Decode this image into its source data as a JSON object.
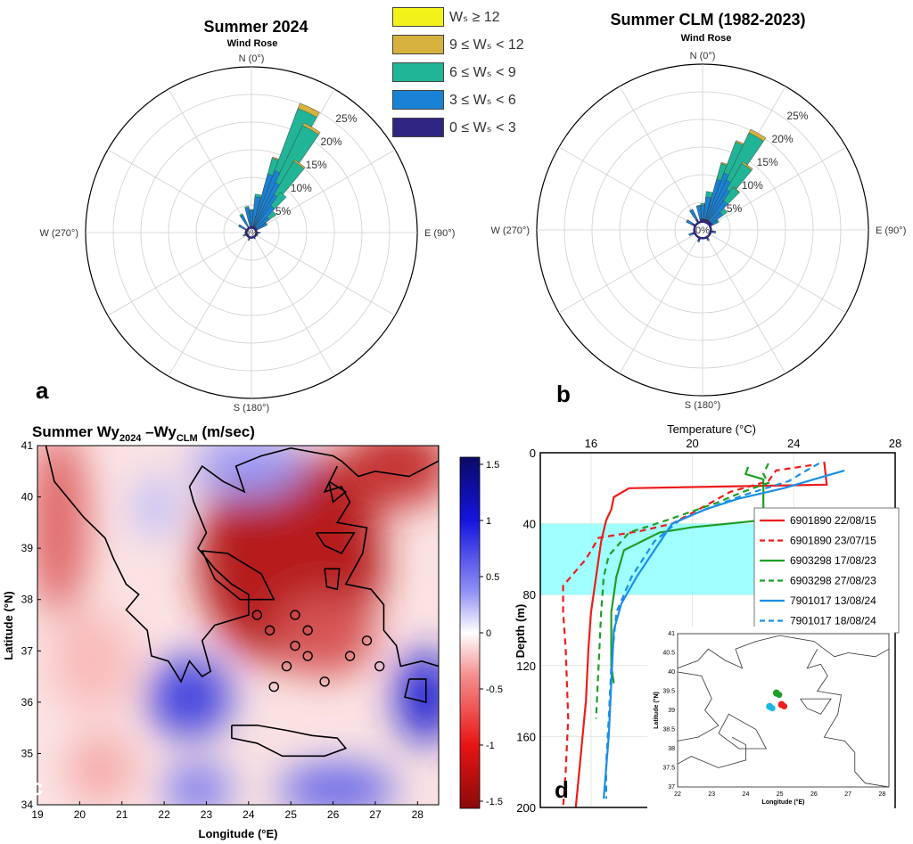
{
  "legend": {
    "title_prefix": "W",
    "entries": [
      {
        "label": "Wₛ ≥ 12",
        "color": "#f2f21a"
      },
      {
        "label": "9 ≤ Wₛ < 12",
        "color": "#d6b13d"
      },
      {
        "label": "6 ≤ Wₛ < 9",
        "color": "#20b596"
      },
      {
        "label": "3 ≤ Wₛ < 6",
        "color": "#1a82d6"
      },
      {
        "label": "0 ≤ Wₛ < 3",
        "color": "#2e2682"
      }
    ]
  },
  "panel_letters": {
    "a": "a",
    "b": "b",
    "c": "c",
    "d": "d"
  },
  "chart_data": [
    {
      "type": "wind_rose",
      "title": "Summer 2024",
      "subtitle": "Wind Rose",
      "direction_labels": [
        "N (0°)",
        "E (90°)",
        "S (180°)",
        "W (270°)"
      ],
      "radial_ticks": [
        "0%",
        "5%",
        "10%",
        "15%",
        "20%",
        "25%"
      ],
      "radial_max": 30,
      "bin_edges": [
        0,
        3,
        6,
        9,
        12
      ],
      "petals": [
        {
          "dir": 0,
          "cum": [
            1.2,
            4.0,
            4.2,
            4.2,
            4.2
          ]
        },
        {
          "dir": 10,
          "cum": [
            1.2,
            6.5,
            7.0,
            7.0,
            7.0
          ]
        },
        {
          "dir": 20,
          "cum": [
            1.2,
            11.0,
            14.0,
            14.2,
            14.2
          ]
        },
        {
          "dir": 25,
          "cum": [
            1.2,
            12.0,
            24.0,
            25.0,
            25.0
          ]
        },
        {
          "dir": 30,
          "cum": [
            1.2,
            10.0,
            21.5,
            22.0,
            22.0
          ]
        },
        {
          "dir": 35,
          "cum": [
            1.2,
            8.0,
            15.0,
            15.3,
            15.3
          ]
        },
        {
          "dir": 40,
          "cum": [
            1.2,
            6.0,
            9.0,
            9.0,
            9.0
          ]
        },
        {
          "dir": 50,
          "cum": [
            1.2,
            4.0,
            5.5,
            5.5,
            5.5
          ]
        },
        {
          "dir": 60,
          "cum": [
            1.2,
            3.0,
            3.2,
            3.2,
            3.2
          ]
        },
        {
          "dir": 90,
          "cum": [
            1.2,
            1.6,
            1.6,
            1.6,
            1.6
          ]
        },
        {
          "dir": 150,
          "cum": [
            1.1,
            1.3,
            1.3,
            1.3,
            1.3
          ]
        },
        {
          "dir": 200,
          "cum": [
            1.3,
            1.5,
            1.5,
            1.5,
            1.5
          ]
        },
        {
          "dir": 250,
          "cum": [
            1.2,
            1.6,
            1.6,
            1.6,
            1.6
          ]
        },
        {
          "dir": 300,
          "cum": [
            1.3,
            2.5,
            2.6,
            2.6,
            2.6
          ]
        },
        {
          "dir": 330,
          "cum": [
            1.3,
            3.5,
            3.8,
            3.8,
            3.8
          ]
        },
        {
          "dir": 350,
          "cum": [
            1.2,
            4.5,
            4.8,
            4.8,
            4.8
          ]
        }
      ]
    },
    {
      "type": "wind_rose",
      "title": "Summer CLM (1982-2023)",
      "subtitle": "Wind Rose",
      "direction_labels": [
        "N (0°)",
        "E (90°)",
        "S (180°)",
        "W (270°)"
      ],
      "radial_ticks": [
        "0%",
        "5%",
        "10%",
        "15%",
        "20%",
        "25%"
      ],
      "radial_max": 30,
      "bin_edges": [
        0,
        3,
        6,
        9,
        12
      ],
      "petals": [
        {
          "dir": 0,
          "cum": [
            2.0,
            4.5,
            4.8,
            4.8,
            4.8
          ]
        },
        {
          "dir": 10,
          "cum": [
            2.0,
            6.0,
            7.0,
            7.0,
            7.0
          ]
        },
        {
          "dir": 20,
          "cum": [
            2.0,
            9.5,
            12.5,
            12.7,
            12.7
          ]
        },
        {
          "dir": 25,
          "cum": [
            2.0,
            11.0,
            17.0,
            17.3,
            17.3
          ]
        },
        {
          "dir": 30,
          "cum": [
            2.0,
            10.0,
            19.5,
            20.2,
            20.2
          ]
        },
        {
          "dir": 35,
          "cum": [
            2.0,
            8.5,
            14.0,
            14.3,
            14.3
          ]
        },
        {
          "dir": 40,
          "cum": [
            2.0,
            6.5,
            9.5,
            9.6,
            9.6
          ]
        },
        {
          "dir": 50,
          "cum": [
            2.0,
            4.5,
            5.5,
            5.5,
            5.5
          ]
        },
        {
          "dir": 60,
          "cum": [
            2.0,
            3.0,
            3.3,
            3.3,
            3.3
          ]
        },
        {
          "dir": 100,
          "cum": [
            2.0,
            2.4,
            2.4,
            2.4,
            2.4
          ]
        },
        {
          "dir": 150,
          "cum": [
            1.9,
            2.2,
            2.2,
            2.2,
            2.2
          ]
        },
        {
          "dir": 200,
          "cum": [
            2.0,
            2.3,
            2.3,
            2.3,
            2.3
          ]
        },
        {
          "dir": 250,
          "cum": [
            2.0,
            2.6,
            2.6,
            2.6,
            2.6
          ]
        },
        {
          "dir": 300,
          "cum": [
            2.1,
            3.2,
            3.3,
            3.3,
            3.3
          ]
        },
        {
          "dir": 330,
          "cum": [
            2.1,
            4.0,
            4.2,
            4.2,
            4.2
          ]
        },
        {
          "dir": 350,
          "cum": [
            2.0,
            4.3,
            4.5,
            4.5,
            4.5
          ]
        }
      ]
    },
    {
      "type": "heatmap",
      "title_parts": [
        "Summer Wy",
        "2024",
        " –Wy",
        "CLM",
        " (m/sec)"
      ],
      "xlabel": "Longitude (°E)",
      "ylabel": "Latitude (°N)",
      "xticks": [
        19,
        20,
        21,
        22,
        23,
        24,
        25,
        26,
        27,
        28
      ],
      "yticks": [
        34,
        35,
        36,
        37,
        38,
        39,
        40,
        41
      ],
      "xlim": [
        19,
        28.5
      ],
      "ylim": [
        34,
        41
      ],
      "colorbar_ticks": [
        "1.5",
        "1",
        "0.5",
        "0",
        "-0.5",
        "-1",
        "-1.5"
      ],
      "colorbar_range": [
        -1.5,
        1.5
      ],
      "field_blobs": [
        {
          "lon": 25.0,
          "lat": 38.8,
          "rx": 2.2,
          "ry": 2.1,
          "value": -1.35
        },
        {
          "lon": 25.8,
          "lat": 37.3,
          "rx": 1.2,
          "ry": 0.8,
          "value": -1.0
        },
        {
          "lon": 27.5,
          "lat": 40.6,
          "rx": 1.3,
          "ry": 0.8,
          "value": -1.2
        },
        {
          "lon": 19.5,
          "lat": 39.5,
          "rx": 0.7,
          "ry": 1.8,
          "value": -0.9
        },
        {
          "lon": 22.6,
          "lat": 36.1,
          "rx": 1.0,
          "ry": 0.8,
          "value": 1.1
        },
        {
          "lon": 28.2,
          "lat": 36.1,
          "rx": 0.7,
          "ry": 0.9,
          "value": 1.3
        },
        {
          "lon": 26.1,
          "lat": 34.3,
          "rx": 1.4,
          "ry": 0.5,
          "value": 0.9
        },
        {
          "lon": 22.8,
          "lat": 34.3,
          "rx": 0.8,
          "ry": 0.5,
          "value": 0.8
        },
        {
          "lon": 24.0,
          "lat": 40.6,
          "rx": 1.3,
          "ry": 0.6,
          "value": 0.6
        },
        {
          "lon": 21.8,
          "lat": 39.8,
          "rx": 0.5,
          "ry": 0.6,
          "value": 0.4
        },
        {
          "lon": 20.5,
          "lat": 34.7,
          "rx": 0.8,
          "ry": 0.7,
          "value": -0.5
        },
        {
          "lon": 20.3,
          "lat": 36.8,
          "rx": 1.0,
          "ry": 1.0,
          "value": -0.4
        }
      ]
    },
    {
      "type": "line",
      "xlabel": "Temperature (°C)",
      "ylabel": "Depth (m)",
      "xlim": [
        14,
        28
      ],
      "ylim": [
        200,
        0
      ],
      "xticks": [
        16,
        20,
        24,
        28
      ],
      "xticks_top": [
        16,
        20,
        24,
        28
      ],
      "yticks": [
        0,
        40,
        80,
        120,
        160,
        200
      ],
      "shaded_band": {
        "from": 40,
        "to": 80,
        "color": "#80ffff"
      },
      "series": [
        {
          "name": "6901890 22/08/15",
          "color": "#ee1c1c",
          "dash": false,
          "points": [
            [
              25.2,
              5
            ],
            [
              25.3,
              18
            ],
            [
              17.5,
              20
            ],
            [
              16.9,
              25
            ],
            [
              16.8,
              32
            ],
            [
              16.6,
              38
            ],
            [
              16.4,
              50
            ],
            [
              16.2,
              70
            ],
            [
              16.0,
              90
            ],
            [
              15.9,
              110
            ],
            [
              15.8,
              140
            ],
            [
              15.6,
              170
            ],
            [
              15.4,
              200
            ]
          ]
        },
        {
          "name": "6901890 23/07/15",
          "color": "#ee1c1c",
          "dash": true,
          "points": [
            [
              24.7,
              7
            ],
            [
              23.3,
              10
            ],
            [
              23.0,
              16
            ],
            [
              21.5,
              22
            ],
            [
              20.5,
              30
            ],
            [
              19.2,
              40
            ],
            [
              18.0,
              44
            ],
            [
              16.3,
              48
            ],
            [
              15.8,
              60
            ],
            [
              14.9,
              75
            ],
            [
              14.9,
              90
            ],
            [
              15.0,
              110
            ],
            [
              15.1,
              150
            ],
            [
              15.0,
              180
            ],
            [
              14.9,
              200
            ]
          ]
        },
        {
          "name": "6903298 17/08/23",
          "color": "#1e9e28",
          "dash": false,
          "points": [
            [
              22.2,
              8
            ],
            [
              22.1,
              12
            ],
            [
              22.8,
              15
            ],
            [
              22.8,
              32
            ],
            [
              22.8,
              38
            ],
            [
              20.0,
              42
            ],
            [
              18.7,
              45
            ],
            [
              17.3,
              55
            ],
            [
              17.0,
              70
            ],
            [
              16.8,
              90
            ],
            [
              16.8,
              120
            ],
            [
              16.9,
              130
            ]
          ]
        },
        {
          "name": "6903298 27/08/23",
          "color": "#1e9e28",
          "dash": true,
          "points": [
            [
              23.0,
              6
            ],
            [
              22.8,
              12
            ],
            [
              23.0,
              17
            ],
            [
              22.0,
              22
            ],
            [
              21.0,
              28
            ],
            [
              19.0,
              38
            ],
            [
              17.5,
              45
            ],
            [
              16.7,
              58
            ],
            [
              16.5,
              70
            ],
            [
              16.4,
              90
            ],
            [
              16.3,
              120
            ],
            [
              16.2,
              150
            ]
          ]
        },
        {
          "name": "7901017 13/08/24",
          "color": "#1a8fe6",
          "dash": false,
          "points": [
            [
              26.0,
              10
            ],
            [
              24.8,
              15
            ],
            [
              23.6,
              20
            ],
            [
              21.8,
              26
            ],
            [
              20.5,
              32
            ],
            [
              19.2,
              40
            ],
            [
              18.5,
              55
            ],
            [
              17.8,
              70
            ],
            [
              17.2,
              85
            ],
            [
              16.9,
              100
            ],
            [
              16.8,
              130
            ],
            [
              16.7,
              160
            ],
            [
              16.5,
              195
            ]
          ]
        },
        {
          "name": "7901017 18/08/24",
          "color": "#1a8fe6",
          "dash": true,
          "points": [
            [
              25.0,
              6
            ],
            [
              24.5,
              10
            ],
            [
              23.8,
              16
            ],
            [
              22.0,
              24
            ],
            [
              20.5,
              32
            ],
            [
              19.5,
              38
            ],
            [
              18.5,
              50
            ],
            [
              17.6,
              70
            ],
            [
              17.0,
              90
            ],
            [
              16.8,
              120
            ],
            [
              16.7,
              150
            ],
            [
              16.6,
              175
            ],
            [
              16.6,
              195
            ]
          ]
        }
      ],
      "inset": {
        "xlabel": "Longitude (°E)",
        "ylabel": "Latitude (°N)",
        "xticks": [
          "22",
          "23",
          "24",
          "25",
          "26",
          "27",
          "28"
        ],
        "yticks": [
          "37",
          "37.5",
          "38",
          "38.5",
          "39",
          "39.5",
          "40",
          "40.5",
          "41"
        ],
        "markers": [
          {
            "lon": 24.9,
            "lat": 39.45,
            "color": "#1e9e28"
          },
          {
            "lon": 25.05,
            "lat": 39.15,
            "color": "#ee1c1c"
          },
          {
            "lon": 24.7,
            "lat": 39.1,
            "color": "#1ab8e6"
          }
        ]
      }
    }
  ]
}
